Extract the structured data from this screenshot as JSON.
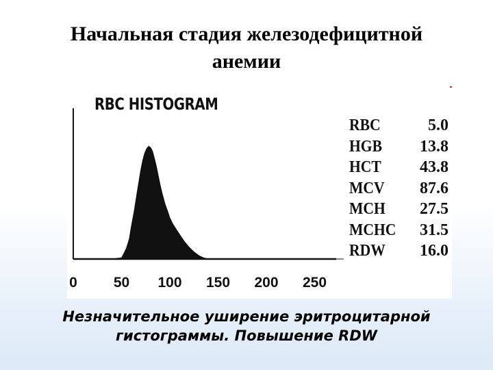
{
  "slide": {
    "title_line1": "Начальная стадия железодефицитной",
    "title_line2": "анемии",
    "caption_line1": "Незначительное уширение эритроцитарной",
    "caption_line2": "гистограммы. Повышение RDW"
  },
  "colors": {
    "fill": "#111111",
    "axis": "#111111",
    "background": "#ffffff"
  },
  "chart_data": {
    "type": "area",
    "title": "RBC HISTOGRAM",
    "xlabel": "",
    "ylabel": "",
    "xlim": [
      0,
      280
    ],
    "ylim": [
      0,
      1
    ],
    "xticks": [
      0,
      50,
      100,
      150,
      200,
      250
    ],
    "grid": false,
    "series": [
      {
        "x": [
          0,
          40,
          50,
          52,
          55,
          58,
          60,
          63,
          66,
          68,
          70,
          72,
          74,
          76,
          78,
          80,
          82,
          84,
          86,
          88,
          90,
          92,
          95,
          98,
          100,
          103,
          106,
          110,
          115,
          120,
          125,
          130,
          135,
          140,
          280
        ],
        "values": [
          0,
          0,
          0.01,
          0.04,
          0.09,
          0.17,
          0.27,
          0.4,
          0.56,
          0.66,
          0.76,
          0.84,
          0.9,
          0.94,
          0.96,
          0.95,
          0.92,
          0.86,
          0.79,
          0.71,
          0.63,
          0.56,
          0.47,
          0.4,
          0.35,
          0.3,
          0.26,
          0.21,
          0.15,
          0.1,
          0.06,
          0.03,
          0.01,
          0,
          0
        ]
      }
    ]
  },
  "parameters": [
    {
      "name": "RBC",
      "value": "5.0"
    },
    {
      "name": "HGB",
      "value": "13.8"
    },
    {
      "name": "HCT",
      "value": "43.8"
    },
    {
      "name": "MCV",
      "value": "87.6"
    },
    {
      "name": "MCH",
      "value": "27.5"
    },
    {
      "name": "MCHC",
      "value": "31.5"
    },
    {
      "name": "RDW",
      "value": "16.0"
    }
  ]
}
